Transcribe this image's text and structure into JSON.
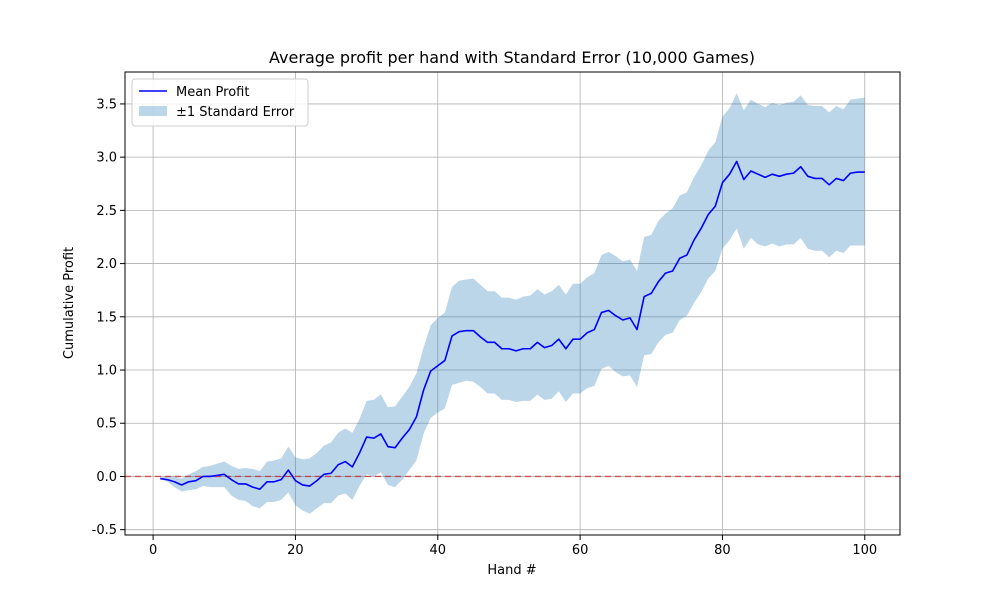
{
  "chart_data": {
    "type": "line",
    "title": "Average profit per hand with Standard Error (10,000 Games)",
    "xlabel": "Hand #",
    "ylabel": "Cumulative Profit",
    "xlim": [
      -3.95,
      104.95
    ],
    "ylim": [
      -0.55,
      3.8
    ],
    "xticks": [
      0,
      20,
      40,
      60,
      80,
      100
    ],
    "yticks": [
      -0.5,
      0.0,
      0.5,
      1.0,
      1.5,
      2.0,
      2.5,
      3.0,
      3.5
    ],
    "grid": true,
    "legend_position": "top-left",
    "reference_line": {
      "y": 0,
      "color": "#d62728",
      "style": "dashed"
    },
    "colors": {
      "mean": "#0000ff",
      "band": "#1f77b4"
    },
    "series": [
      {
        "name": "Mean Profit",
        "x": [
          1,
          2,
          3,
          4,
          5,
          6,
          7,
          8,
          9,
          10,
          11,
          12,
          13,
          14,
          15,
          16,
          17,
          18,
          19,
          20,
          21,
          22,
          23,
          24,
          25,
          26,
          27,
          28,
          29,
          30,
          31,
          32,
          33,
          34,
          35,
          36,
          37,
          38,
          39,
          40,
          41,
          42,
          43,
          44,
          45,
          46,
          47,
          48,
          49,
          50,
          51,
          52,
          53,
          54,
          55,
          56,
          57,
          58,
          59,
          60,
          61,
          62,
          63,
          64,
          65,
          66,
          67,
          68,
          69,
          70,
          71,
          72,
          73,
          74,
          75,
          76,
          77,
          78,
          79,
          80,
          81,
          82,
          83,
          84,
          85,
          86,
          87,
          88,
          89,
          90,
          91,
          92,
          93,
          94,
          95,
          96,
          97,
          98,
          99,
          100
        ],
        "y": [
          -0.02,
          -0.03,
          -0.05,
          -0.08,
          -0.05,
          -0.04,
          0.0,
          0.0,
          0.01,
          0.02,
          -0.03,
          -0.07,
          -0.07,
          -0.1,
          -0.12,
          -0.05,
          -0.05,
          -0.03,
          0.06,
          -0.04,
          -0.08,
          -0.09,
          -0.04,
          0.02,
          0.03,
          0.11,
          0.14,
          0.09,
          0.22,
          0.37,
          0.36,
          0.4,
          0.28,
          0.27,
          0.36,
          0.44,
          0.56,
          0.81,
          0.99,
          1.04,
          1.09,
          1.32,
          1.36,
          1.37,
          1.37,
          1.31,
          1.26,
          1.26,
          1.2,
          1.2,
          1.18,
          1.2,
          1.2,
          1.26,
          1.21,
          1.23,
          1.29,
          1.2,
          1.29,
          1.29,
          1.35,
          1.38,
          1.54,
          1.56,
          1.51,
          1.47,
          1.49,
          1.38,
          1.69,
          1.72,
          1.83,
          1.91,
          1.93,
          2.05,
          2.08,
          2.22,
          2.33,
          2.46,
          2.54,
          2.76,
          2.84,
          2.96,
          2.79,
          2.87,
          2.84,
          2.81,
          2.84,
          2.82,
          2.84,
          2.85,
          2.91,
          2.82,
          2.8,
          2.8,
          2.74,
          2.8,
          2.78,
          2.85,
          2.86,
          2.86
        ]
      },
      {
        "name": "±1 Standard Error",
        "x": [
          1,
          2,
          3,
          4,
          5,
          6,
          7,
          8,
          9,
          10,
          11,
          12,
          13,
          14,
          15,
          16,
          17,
          18,
          19,
          20,
          21,
          22,
          23,
          24,
          25,
          26,
          27,
          28,
          29,
          30,
          31,
          32,
          33,
          34,
          35,
          36,
          37,
          38,
          39,
          40,
          41,
          42,
          43,
          44,
          45,
          46,
          47,
          48,
          49,
          50,
          51,
          52,
          53,
          54,
          55,
          56,
          57,
          58,
          59,
          60,
          61,
          62,
          63,
          64,
          65,
          66,
          67,
          68,
          69,
          70,
          71,
          72,
          73,
          74,
          75,
          76,
          77,
          78,
          79,
          80,
          81,
          82,
          83,
          84,
          85,
          86,
          87,
          88,
          89,
          90,
          91,
          92,
          93,
          94,
          95,
          96,
          97,
          98,
          99,
          100
        ],
        "lower": [
          -0.02,
          -0.05,
          -0.1,
          -0.14,
          -0.13,
          -0.12,
          -0.09,
          -0.1,
          -0.1,
          -0.1,
          -0.18,
          -0.22,
          -0.23,
          -0.28,
          -0.3,
          -0.24,
          -0.24,
          -0.22,
          -0.15,
          -0.27,
          -0.32,
          -0.35,
          -0.3,
          -0.25,
          -0.25,
          -0.18,
          -0.16,
          -0.22,
          -0.09,
          0.02,
          0.0,
          0.04,
          -0.08,
          -0.1,
          -0.03,
          0.06,
          0.15,
          0.4,
          0.55,
          0.6,
          0.64,
          0.86,
          0.88,
          0.9,
          0.89,
          0.84,
          0.78,
          0.78,
          0.72,
          0.72,
          0.7,
          0.71,
          0.71,
          0.77,
          0.72,
          0.73,
          0.8,
          0.7,
          0.78,
          0.78,
          0.83,
          0.85,
          1.01,
          1.04,
          0.98,
          0.94,
          0.95,
          0.84,
          1.14,
          1.15,
          1.26,
          1.33,
          1.35,
          1.47,
          1.51,
          1.63,
          1.73,
          1.86,
          1.93,
          2.14,
          2.22,
          2.33,
          2.14,
          2.24,
          2.18,
          2.16,
          2.19,
          2.16,
          2.18,
          2.18,
          2.24,
          2.14,
          2.12,
          2.12,
          2.06,
          2.12,
          2.1,
          2.17,
          2.17,
          2.17
        ],
        "upper": [
          -0.01,
          0.0,
          0.0,
          -0.02,
          0.02,
          0.05,
          0.09,
          0.1,
          0.12,
          0.14,
          0.1,
          0.07,
          0.08,
          0.07,
          0.05,
          0.14,
          0.15,
          0.17,
          0.28,
          0.18,
          0.16,
          0.17,
          0.22,
          0.29,
          0.32,
          0.41,
          0.45,
          0.41,
          0.54,
          0.71,
          0.72,
          0.77,
          0.65,
          0.66,
          0.75,
          0.84,
          0.97,
          1.21,
          1.42,
          1.49,
          1.54,
          1.78,
          1.84,
          1.85,
          1.86,
          1.8,
          1.74,
          1.74,
          1.68,
          1.68,
          1.66,
          1.69,
          1.7,
          1.76,
          1.71,
          1.74,
          1.8,
          1.71,
          1.81,
          1.81,
          1.87,
          1.91,
          2.08,
          2.11,
          2.07,
          2.02,
          2.04,
          1.93,
          2.25,
          2.27,
          2.4,
          2.47,
          2.52,
          2.64,
          2.67,
          2.81,
          2.92,
          3.06,
          3.14,
          3.38,
          3.46,
          3.6,
          3.44,
          3.54,
          3.5,
          3.47,
          3.51,
          3.49,
          3.51,
          3.52,
          3.58,
          3.49,
          3.48,
          3.48,
          3.42,
          3.48,
          3.45,
          3.54,
          3.55,
          3.56
        ]
      }
    ]
  }
}
